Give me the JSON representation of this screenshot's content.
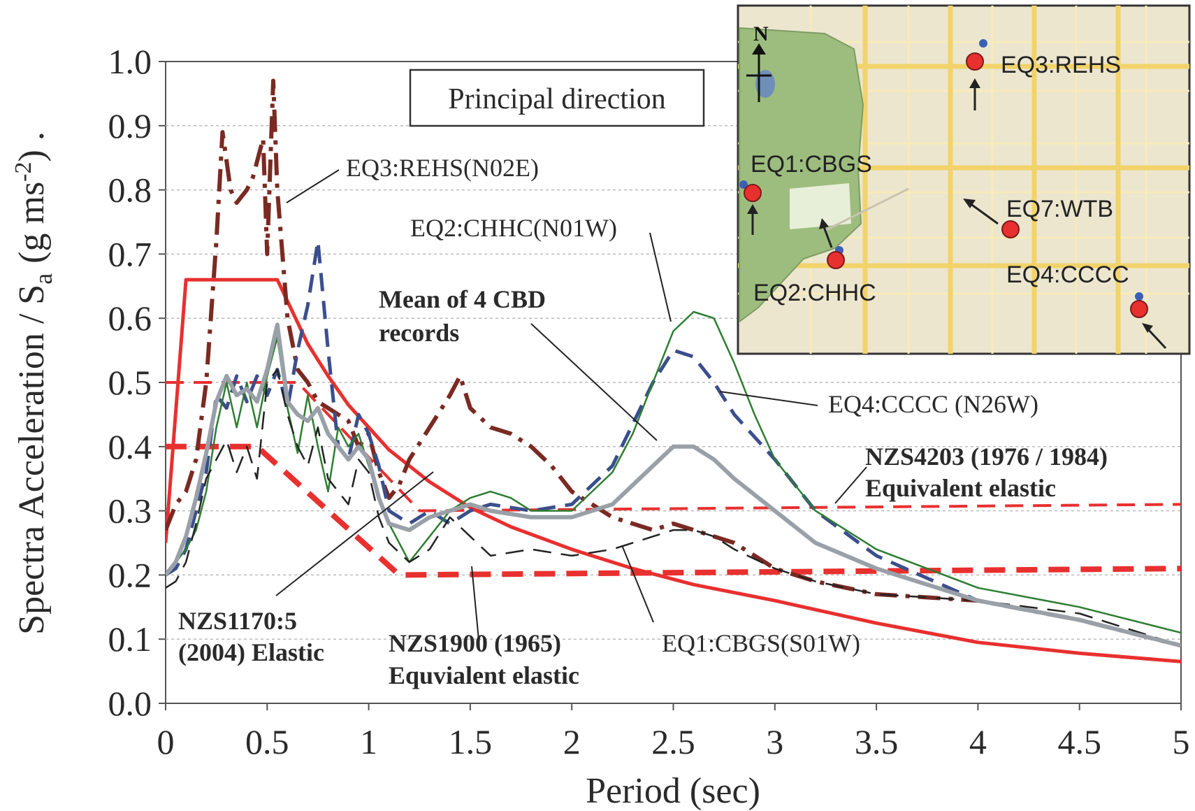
{
  "chart_data": {
    "type": "line",
    "title": "",
    "xlabel": "Period (sec)",
    "ylabel_main": "Spectra Acceleration / S",
    "ylabel_sub": "a",
    "ylabel_units": "(g ms",
    "ylabel_exp": "-2",
    "ylabel_tail": ") .",
    "xlim": [
      0,
      5
    ],
    "ylim": [
      0,
      1.0
    ],
    "xticks": [
      "0",
      "0.5",
      "1",
      "1.5",
      "2",
      "2.5",
      "3",
      "3.5",
      "4",
      "4.5",
      "5"
    ],
    "yticks": [
      "0.0",
      "0.1",
      "0.2",
      "0.3",
      "0.4",
      "0.5",
      "0.6",
      "0.7",
      "0.8",
      "0.9",
      "1.0"
    ],
    "grid": true,
    "box_label": "Principal direction",
    "series": [
      {
        "name": "NZS1170:5 (2004) Elastic",
        "color": "#e8302f",
        "style": "solid",
        "width": 5,
        "x": [
          0,
          0.1,
          0.5,
          0.55,
          0.7,
          0.8,
          0.9,
          1.0,
          1.1,
          1.2,
          1.3,
          1.5,
          1.7,
          2.0,
          2.3,
          2.6,
          3.0,
          3.5,
          4.0,
          4.5,
          5.0
        ],
        "y": [
          0.25,
          0.66,
          0.66,
          0.66,
          0.56,
          0.51,
          0.465,
          0.43,
          0.395,
          0.37,
          0.345,
          0.305,
          0.275,
          0.24,
          0.21,
          0.185,
          0.16,
          0.125,
          0.095,
          0.078,
          0.065
        ]
      },
      {
        "name": "NZS1900 (1965) Equivalent elastic",
        "color": "#e8302f",
        "style": "dashed-thick",
        "width": 8,
        "x": [
          0,
          0.08,
          0.45,
          1.15,
          5.0
        ],
        "y": [
          0.4,
          0.4,
          0.4,
          0.2,
          0.21
        ]
      },
      {
        "name": "NZS4203 (1976 / 1984) Equivalent elastic",
        "color": "#e8302f",
        "style": "dashed",
        "width": 4,
        "x": [
          0,
          0.1,
          0.65,
          1.25,
          5.0
        ],
        "y": [
          0.5,
          0.5,
          0.5,
          0.3,
          0.31
        ]
      },
      {
        "name": "EQ3:REHS(N02E)",
        "color": "#7a2a22",
        "style": "dashdot",
        "width": 6,
        "x": [
          0,
          0.05,
          0.1,
          0.15,
          0.2,
          0.25,
          0.28,
          0.32,
          0.35,
          0.4,
          0.43,
          0.48,
          0.5,
          0.53,
          0.55,
          0.6,
          0.65,
          0.7,
          0.75,
          0.8,
          0.85,
          0.9,
          0.95,
          1.0,
          1.05,
          1.1,
          1.15,
          1.2,
          1.3,
          1.4,
          1.45,
          1.5,
          1.6,
          1.7,
          1.8,
          1.9,
          2.0,
          2.2,
          2.4,
          2.5,
          2.6,
          2.7,
          2.8,
          3.0,
          3.2,
          3.5,
          4.0,
          4.5,
          5.0
        ],
        "y": [
          0.27,
          0.31,
          0.33,
          0.38,
          0.5,
          0.72,
          0.89,
          0.8,
          0.78,
          0.8,
          0.82,
          0.88,
          0.7,
          0.97,
          0.8,
          0.6,
          0.52,
          0.5,
          0.47,
          0.46,
          0.45,
          0.44,
          0.4,
          0.42,
          0.36,
          0.32,
          0.34,
          0.38,
          0.43,
          0.48,
          0.51,
          0.46,
          0.43,
          0.42,
          0.4,
          0.37,
          0.33,
          0.29,
          0.27,
          0.28,
          0.27,
          0.26,
          0.25,
          0.21,
          0.19,
          0.17,
          0.16,
          0.13,
          0.09
        ]
      },
      {
        "name": "EQ2:CHHC(N01W)",
        "color": "#3b4e8c",
        "style": "dashed",
        "width": 5,
        "x": [
          0,
          0.05,
          0.1,
          0.15,
          0.2,
          0.25,
          0.3,
          0.35,
          0.4,
          0.45,
          0.5,
          0.55,
          0.6,
          0.65,
          0.7,
          0.75,
          0.8,
          0.85,
          0.9,
          0.95,
          1.0,
          1.05,
          1.1,
          1.2,
          1.3,
          1.4,
          1.5,
          1.6,
          1.8,
          2.0,
          2.2,
          2.4,
          2.5,
          2.6,
          2.7,
          2.8,
          3.0,
          3.2,
          3.5,
          4.0,
          4.5,
          5.0
        ],
        "y": [
          0.2,
          0.21,
          0.24,
          0.3,
          0.36,
          0.48,
          0.46,
          0.51,
          0.47,
          0.51,
          0.48,
          0.52,
          0.46,
          0.55,
          0.62,
          0.72,
          0.55,
          0.4,
          0.38,
          0.45,
          0.42,
          0.37,
          0.3,
          0.28,
          0.3,
          0.28,
          0.3,
          0.31,
          0.3,
          0.31,
          0.37,
          0.5,
          0.55,
          0.54,
          0.5,
          0.45,
          0.38,
          0.3,
          0.23,
          0.16,
          0.13,
          0.09
        ]
      },
      {
        "name": "EQ4:CCCC (N26W)",
        "color": "#2e7d32",
        "style": "solid",
        "width": 2.5,
        "x": [
          0,
          0.1,
          0.15,
          0.2,
          0.25,
          0.3,
          0.35,
          0.4,
          0.45,
          0.5,
          0.55,
          0.6,
          0.65,
          0.7,
          0.75,
          0.8,
          0.85,
          0.9,
          0.95,
          1.0,
          1.05,
          1.1,
          1.2,
          1.3,
          1.4,
          1.5,
          1.6,
          1.7,
          1.8,
          2.0,
          2.2,
          2.3,
          2.4,
          2.5,
          2.6,
          2.7,
          2.8,
          2.9,
          3.0,
          3.2,
          3.5,
          4.0,
          4.5,
          5.0
        ],
        "y": [
          0.2,
          0.24,
          0.27,
          0.33,
          0.43,
          0.5,
          0.43,
          0.5,
          0.43,
          0.51,
          0.57,
          0.46,
          0.39,
          0.48,
          0.4,
          0.33,
          0.43,
          0.4,
          0.42,
          0.37,
          0.32,
          0.28,
          0.22,
          0.26,
          0.3,
          0.32,
          0.33,
          0.32,
          0.3,
          0.3,
          0.36,
          0.42,
          0.5,
          0.58,
          0.61,
          0.6,
          0.53,
          0.45,
          0.38,
          0.3,
          0.24,
          0.18,
          0.15,
          0.11
        ]
      },
      {
        "name": "EQ1:CBGS(S01W)",
        "color": "#222222",
        "style": "dashed",
        "width": 2.5,
        "x": [
          0,
          0.05,
          0.1,
          0.15,
          0.2,
          0.25,
          0.3,
          0.35,
          0.4,
          0.45,
          0.5,
          0.55,
          0.6,
          0.65,
          0.7,
          0.75,
          0.8,
          0.85,
          0.9,
          0.95,
          1.0,
          1.05,
          1.1,
          1.2,
          1.3,
          1.4,
          1.5,
          1.6,
          1.8,
          2.0,
          2.2,
          2.4,
          2.5,
          2.6,
          2.7,
          2.8,
          3.0,
          3.2,
          3.5,
          4.0,
          4.5,
          5.0
        ],
        "y": [
          0.18,
          0.19,
          0.22,
          0.28,
          0.35,
          0.38,
          0.41,
          0.36,
          0.4,
          0.35,
          0.5,
          0.52,
          0.45,
          0.4,
          0.37,
          0.43,
          0.35,
          0.33,
          0.31,
          0.38,
          0.36,
          0.29,
          0.25,
          0.22,
          0.24,
          0.29,
          0.26,
          0.23,
          0.24,
          0.23,
          0.24,
          0.26,
          0.27,
          0.27,
          0.26,
          0.24,
          0.21,
          0.19,
          0.17,
          0.16,
          0.14,
          0.09
        ]
      },
      {
        "name": "Mean of 4 CBD records",
        "color": "#9aa0a8",
        "style": "solid",
        "width": 6,
        "x": [
          0,
          0.05,
          0.1,
          0.15,
          0.2,
          0.25,
          0.3,
          0.35,
          0.4,
          0.45,
          0.5,
          0.55,
          0.6,
          0.65,
          0.7,
          0.75,
          0.8,
          0.85,
          0.9,
          0.95,
          1.0,
          1.05,
          1.1,
          1.2,
          1.3,
          1.4,
          1.5,
          1.6,
          1.8,
          2.0,
          2.2,
          2.4,
          2.5,
          2.6,
          2.7,
          2.8,
          3.0,
          3.2,
          3.5,
          4.0,
          4.5,
          5.0
        ],
        "y": [
          0.2,
          0.22,
          0.26,
          0.32,
          0.39,
          0.47,
          0.51,
          0.48,
          0.49,
          0.47,
          0.52,
          0.59,
          0.47,
          0.45,
          0.44,
          0.46,
          0.42,
          0.4,
          0.38,
          0.4,
          0.38,
          0.32,
          0.28,
          0.27,
          0.29,
          0.3,
          0.31,
          0.3,
          0.29,
          0.29,
          0.31,
          0.37,
          0.4,
          0.4,
          0.38,
          0.35,
          0.3,
          0.25,
          0.21,
          0.16,
          0.13,
          0.09
        ]
      }
    ],
    "annotations": {
      "eq3": "EQ3:REHS(N02E)",
      "eq2": "EQ2:CHHC(N01W)",
      "mean_l1": "Mean of 4 CBD",
      "mean_l2": "records",
      "eq4": "EQ4:CCCC (N26W)",
      "nzs4203_l1": "NZS4203 (1976 / 1984)",
      "nzs4203_l2": "Equivalent elastic",
      "nzs1170_l1": "NZS1170:5",
      "nzs1170_l2": "(2004) Elastic",
      "nzs1900_l1": "NZS1900 (1965)",
      "nzs1900_l2": "Equvialent elastic",
      "eq1": "EQ1:CBGS(S01W)"
    }
  },
  "inset_map": {
    "north_label": "N",
    "stations": [
      {
        "label": "EQ3:REHS"
      },
      {
        "label": "EQ1:CBGS"
      },
      {
        "label": "EQ7:WTB"
      },
      {
        "label": "EQ2:CHHC"
      },
      {
        "label": "EQ4:CCCC"
      }
    ],
    "colors": {
      "park": "#9dbd7f",
      "background": "#ece6cf",
      "road": "#f2d36a",
      "marker": "#e8302f"
    }
  }
}
